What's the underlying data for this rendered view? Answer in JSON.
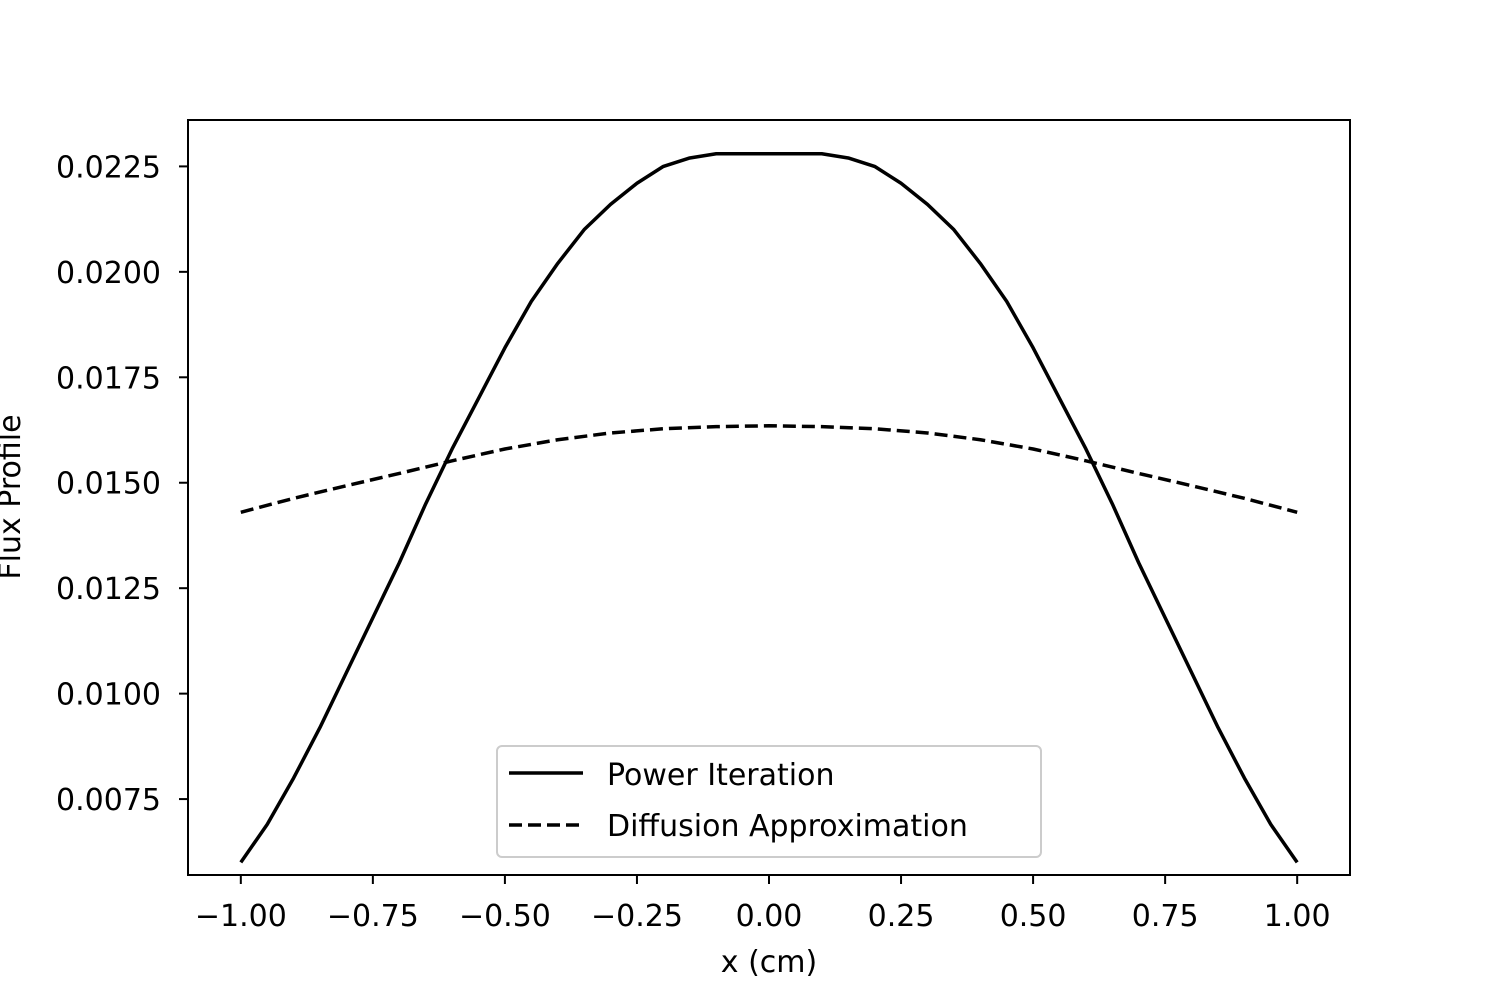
{
  "chart_data": {
    "type": "line",
    "title": "",
    "xlabel": "x (cm)",
    "ylabel": "Flux Profile",
    "xlim": [
      -1.1,
      1.1
    ],
    "ylim": [
      0.0057,
      0.0236
    ],
    "xticks": [
      -1.0,
      -0.75,
      -0.5,
      -0.25,
      0.0,
      0.25,
      0.5,
      0.75,
      1.0
    ],
    "xtick_labels": [
      "−1.00",
      "−0.75",
      "−0.50",
      "−0.25",
      "0.00",
      "0.25",
      "0.50",
      "0.75",
      "1.00"
    ],
    "yticks": [
      0.0075,
      0.01,
      0.0125,
      0.015,
      0.0175,
      0.02,
      0.0225
    ],
    "ytick_labels": [
      "0.0075",
      "0.0100",
      "0.0125",
      "0.0150",
      "0.0175",
      "0.0200",
      "0.0225"
    ],
    "grid": false,
    "legend_position": "bottom-center",
    "series": [
      {
        "name": "Power Iteration",
        "style": "solid",
        "color": "#000000",
        "x": [
          -1.0,
          -0.95,
          -0.9,
          -0.85,
          -0.8,
          -0.75,
          -0.7,
          -0.65,
          -0.6,
          -0.55,
          -0.5,
          -0.45,
          -0.4,
          -0.35,
          -0.3,
          -0.25,
          -0.2,
          -0.15,
          -0.1,
          -0.05,
          0.0,
          0.05,
          0.1,
          0.15,
          0.2,
          0.25,
          0.3,
          0.35,
          0.4,
          0.45,
          0.5,
          0.55,
          0.6,
          0.65,
          0.7,
          0.75,
          0.8,
          0.85,
          0.9,
          0.95,
          1.0
        ],
        "y": [
          0.006,
          0.0069,
          0.008,
          0.0092,
          0.0105,
          0.0118,
          0.0131,
          0.0145,
          0.0158,
          0.017,
          0.0182,
          0.0193,
          0.0202,
          0.021,
          0.0216,
          0.0221,
          0.0225,
          0.0227,
          0.0228,
          0.0228,
          0.0228,
          0.0228,
          0.0228,
          0.0227,
          0.0225,
          0.0221,
          0.0216,
          0.021,
          0.0202,
          0.0193,
          0.0182,
          0.017,
          0.0158,
          0.0145,
          0.0131,
          0.0118,
          0.0105,
          0.0092,
          0.008,
          0.0069,
          0.006
        ]
      },
      {
        "name": "Diffusion Approximation",
        "style": "dashed",
        "color": "#000000",
        "x": [
          -1.0,
          -0.9,
          -0.8,
          -0.7,
          -0.6,
          -0.5,
          -0.4,
          -0.3,
          -0.2,
          -0.1,
          0.0,
          0.1,
          0.2,
          0.3,
          0.4,
          0.5,
          0.6,
          0.7,
          0.8,
          0.9,
          1.0
        ],
        "y": [
          0.0143,
          0.01463,
          0.01493,
          0.01522,
          0.01552,
          0.0158,
          0.01602,
          0.01618,
          0.01628,
          0.01633,
          0.01635,
          0.01633,
          0.01628,
          0.01618,
          0.01602,
          0.0158,
          0.01552,
          0.01522,
          0.01493,
          0.01463,
          0.0143
        ]
      }
    ]
  }
}
